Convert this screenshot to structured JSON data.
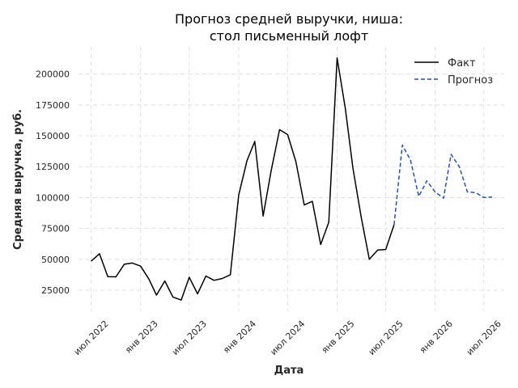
{
  "chart_data": {
    "type": "line",
    "title": [
      "Прогноз средней выручки, ниша:",
      "стол письменный лофт"
    ],
    "xlabel": "Дата",
    "ylabel": "Средняя выручка, руб.",
    "x_ticks": [
      {
        "date": "2022-07-01",
        "label": "июл 2022"
      },
      {
        "date": "2023-01-01",
        "label": "янв 2023"
      },
      {
        "date": "2023-07-01",
        "label": "июл 2023"
      },
      {
        "date": "2024-01-01",
        "label": "янв 2024"
      },
      {
        "date": "2024-07-01",
        "label": "июл 2024"
      },
      {
        "date": "2025-01-01",
        "label": "янв 2025"
      },
      {
        "date": "2025-07-01",
        "label": "июл 2025"
      },
      {
        "date": "2026-01-01",
        "label": "янв 2026"
      },
      {
        "date": "2026-07-01",
        "label": "июл 2026"
      }
    ],
    "y_ticks": [
      25000,
      50000,
      75000,
      100000,
      125000,
      150000,
      175000,
      200000
    ],
    "xlim": [
      "2022-05-15",
      "2026-09-15"
    ],
    "ylim": [
      8000,
      222000
    ],
    "grid": true,
    "legend_position": "top-right",
    "series": [
      {
        "name": "Факт",
        "color": "#000000",
        "style": "solid",
        "points": [
          [
            "2022-07-01",
            48500
          ],
          [
            "2022-08-01",
            54500
          ],
          [
            "2022-09-01",
            36000
          ],
          [
            "2022-10-01",
            35800
          ],
          [
            "2022-11-01",
            46000
          ],
          [
            "2022-12-01",
            47000
          ],
          [
            "2023-01-01",
            44500
          ],
          [
            "2023-02-01",
            34000
          ],
          [
            "2023-03-01",
            21000
          ],
          [
            "2023-04-01",
            32500
          ],
          [
            "2023-05-01",
            19500
          ],
          [
            "2023-06-01",
            17000
          ],
          [
            "2023-07-01",
            35500
          ],
          [
            "2023-08-01",
            22000
          ],
          [
            "2023-09-01",
            36500
          ],
          [
            "2023-10-01",
            33000
          ],
          [
            "2023-11-01",
            34500
          ],
          [
            "2023-12-01",
            37500
          ],
          [
            "2024-01-01",
            102000
          ],
          [
            "2024-02-01",
            130000
          ],
          [
            "2024-03-01",
            145500
          ],
          [
            "2024-04-01",
            85000
          ],
          [
            "2024-05-01",
            122000
          ],
          [
            "2024-06-01",
            155000
          ],
          [
            "2024-07-01",
            151000
          ],
          [
            "2024-08-01",
            129000
          ],
          [
            "2024-09-01",
            94000
          ],
          [
            "2024-10-01",
            97000
          ],
          [
            "2024-11-01",
            62000
          ],
          [
            "2024-12-01",
            80000
          ],
          [
            "2025-01-01",
            213000
          ],
          [
            "2025-02-01",
            172000
          ],
          [
            "2025-03-01",
            124000
          ],
          [
            "2025-04-01",
            84000
          ],
          [
            "2025-05-01",
            50000
          ],
          [
            "2025-06-01",
            57500
          ],
          [
            "2025-07-01",
            58000
          ],
          [
            "2025-08-01",
            78000
          ]
        ]
      },
      {
        "name": "Прогноз",
        "color": "#1f4fd1",
        "style": "dashed",
        "points": [
          [
            "2025-08-01",
            78000
          ],
          [
            "2025-09-01",
            142500
          ],
          [
            "2025-10-01",
            130500
          ],
          [
            "2025-11-01",
            101000
          ],
          [
            "2025-12-01",
            113500
          ],
          [
            "2026-01-01",
            104500
          ],
          [
            "2026-02-01",
            99500
          ],
          [
            "2026-03-01",
            135000
          ],
          [
            "2026-04-01",
            125000
          ],
          [
            "2026-05-01",
            104500
          ],
          [
            "2026-06-01",
            104000
          ],
          [
            "2026-07-01",
            100000
          ],
          [
            "2026-08-01",
            100500
          ]
        ]
      }
    ]
  }
}
